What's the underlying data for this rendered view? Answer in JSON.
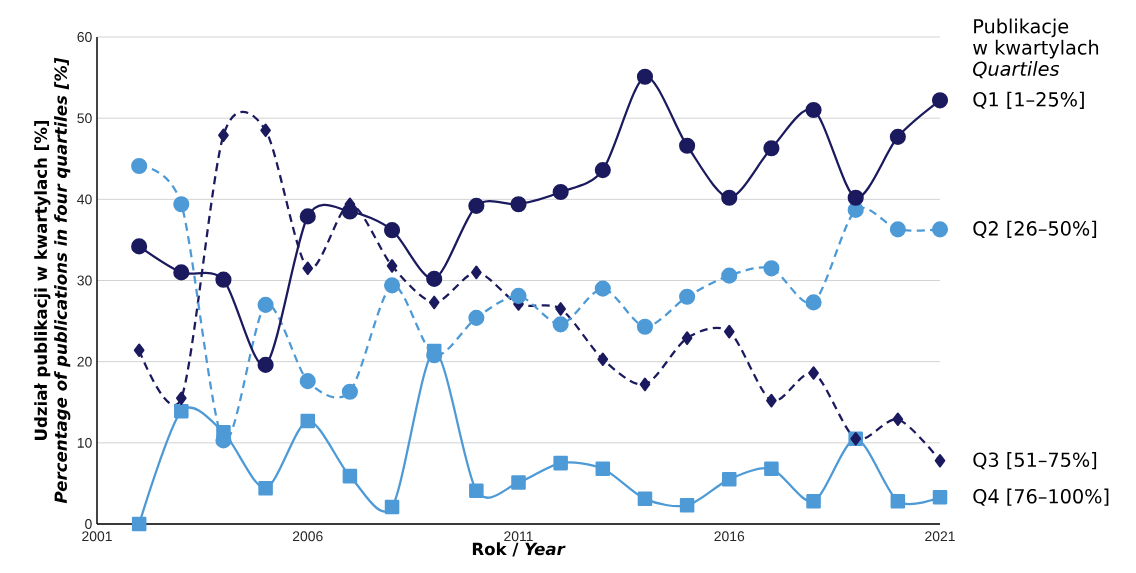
{
  "chart_data": {
    "type": "line",
    "xlabel": "Rok / *Year*",
    "ylabel": "Udział publikacji w kwartylach [%] *Percentage of publications in four quartiles [%]*",
    "legend_title": "Publikacje w kwartylach *Quartiles*",
    "x": [
      2002,
      2003,
      2004,
      2005,
      2006,
      2007,
      2008,
      2009,
      2010,
      2011,
      2012,
      2013,
      2014,
      2015,
      2016,
      2017,
      2018,
      2019,
      2020,
      2021
    ],
    "xlim": [
      2001,
      2021
    ],
    "xticks": [
      2001,
      2006,
      2011,
      2016,
      2021
    ],
    "ylim": [
      0,
      60
    ],
    "yticks": [
      0,
      10,
      20,
      30,
      40,
      50,
      60
    ],
    "grid": "y",
    "series": [
      {
        "name": "Q1 [1–25%]",
        "color": "#1b1a5e",
        "marker": "circle",
        "line_style": "solid",
        "values": [
          34.2,
          31.0,
          30.1,
          19.6,
          37.9,
          38.5,
          36.2,
          30.2,
          39.2,
          39.4,
          40.9,
          43.6,
          55.1,
          46.6,
          40.2,
          46.3,
          51.0,
          40.2,
          47.7,
          52.2
        ]
      },
      {
        "name": "Q2 [26–50%]",
        "color": "#4d9ad6",
        "marker": "circle",
        "line_style": "dashed",
        "values": [
          44.1,
          39.4,
          10.3,
          27.0,
          17.6,
          16.3,
          29.4,
          20.8,
          25.4,
          28.1,
          24.6,
          29.0,
          24.3,
          28.0,
          30.6,
          31.5,
          27.3,
          38.7,
          36.3,
          36.3
        ]
      },
      {
        "name": "Q3 [51–75%]",
        "color": "#1b1a5e",
        "marker": "diamond",
        "line_style": "dashed",
        "values": [
          21.4,
          15.5,
          47.9,
          48.5,
          31.5,
          39.4,
          31.8,
          27.3,
          31.0,
          27.1,
          26.5,
          20.3,
          17.2,
          22.9,
          23.7,
          15.2,
          18.6,
          10.5,
          12.9,
          7.8
        ]
      },
      {
        "name": "Q4 [76–100%]",
        "color": "#4d9ad6",
        "marker": "square",
        "line_style": "solid",
        "values": [
          0,
          13.9,
          11.3,
          4.4,
          12.7,
          5.9,
          2.1,
          21.3,
          4.1,
          5.1,
          7.5,
          6.8,
          3.1,
          2.3,
          5.5,
          6.8,
          2.8,
          10.5,
          2.8,
          3.3
        ]
      }
    ]
  }
}
